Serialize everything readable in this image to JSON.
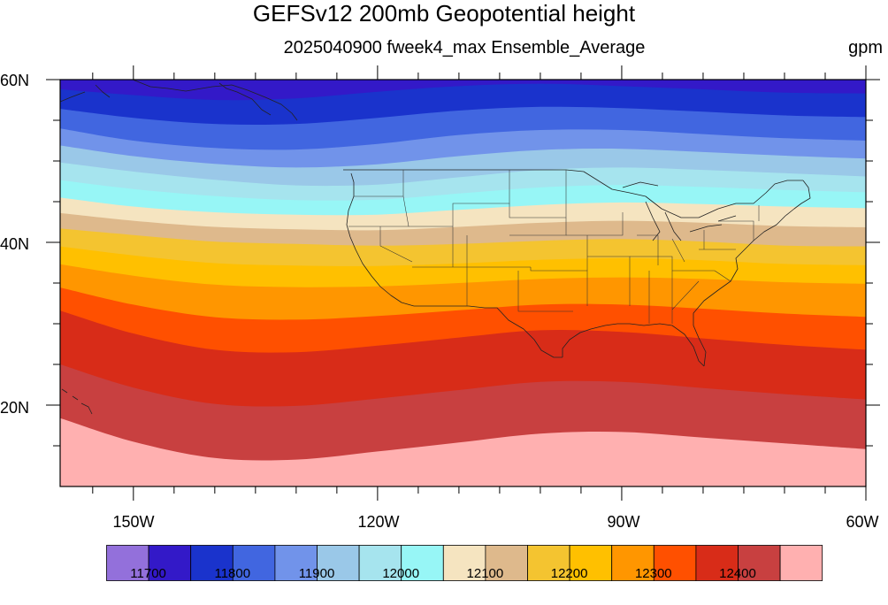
{
  "title": "GEFSv12 200mb Geopotential height",
  "subtitle": "2025040900 fweek4_max Ensemble_Average",
  "units": "gpm",
  "lat_labels": [
    "60N",
    "40N",
    "20N"
  ],
  "lon_labels": [
    "150W",
    "120W",
    "90W",
    "60W"
  ],
  "colorbar": {
    "colors": [
      "#9370db",
      "#3319c8",
      "#1a33cc",
      "#4166e0",
      "#7193ea",
      "#9ac8e8",
      "#a6e4ee",
      "#97f6f6",
      "#f5e4c0",
      "#deb98c",
      "#f4c430",
      "#ffc000",
      "#ff9600",
      "#ff5000",
      "#d82c18",
      "#c84040",
      "#ffb0b0"
    ],
    "labels": [
      "11700",
      "11800",
      "11900",
      "12000",
      "12100",
      "12200",
      "12300",
      "12400"
    ]
  },
  "chart_data": {
    "type": "heatmap",
    "title": "GEFSv12 200mb Geopotential height",
    "subtitle": "2025040900 fweek4_max Ensemble_Average",
    "units": "gpm",
    "domain": {
      "lon": [
        -159,
        -60
      ],
      "lat": [
        10,
        60
      ]
    },
    "x_ticks": [
      "150W",
      "120W",
      "90W",
      "60W"
    ],
    "y_ticks": [
      "60N",
      "40N",
      "20N"
    ],
    "contour_levels": [
      11650,
      11700,
      11750,
      11800,
      11850,
      11900,
      11950,
      12000,
      12050,
      12100,
      12150,
      12200,
      12250,
      12300,
      12350,
      12400,
      12450
    ],
    "contours": [
      {
        "value": 11700,
        "lon": [
          -159,
          -150,
          -140,
          -130,
          -120,
          -110,
          -100,
          -90,
          -80,
          -70,
          -60
        ],
        "lat": [
          58.8,
          58.1,
          57.5,
          57.7,
          58.5,
          59.2,
          59.5,
          59.2,
          58.8,
          58.4,
          58.3
        ]
      },
      {
        "value": 11800,
        "lon": [
          -159,
          -150,
          -140,
          -130,
          -120,
          -110,
          -100,
          -90,
          -80,
          -70,
          -60
        ],
        "lat": [
          54.0,
          52.5,
          51.6,
          51.4,
          52.1,
          53.2,
          53.8,
          53.8,
          53.3,
          52.8,
          52.5
        ]
      },
      {
        "value": 11900,
        "lon": [
          -159,
          -150,
          -140,
          -130,
          -120,
          -110,
          -100,
          -90,
          -80,
          -70,
          -60
        ],
        "lat": [
          49.8,
          48.7,
          47.7,
          47.0,
          47.1,
          48.0,
          48.9,
          49.2,
          48.9,
          48.5,
          48.1
        ]
      },
      {
        "value": 12000,
        "lon": [
          -159,
          -150,
          -140,
          -130,
          -120,
          -110,
          -100,
          -90,
          -80,
          -70,
          -60
        ],
        "lat": [
          45.5,
          44.4,
          43.7,
          43.4,
          43.4,
          44.0,
          44.6,
          44.9,
          44.7,
          44.4,
          44.2
        ]
      },
      {
        "value": 12100,
        "lon": [
          -159,
          -150,
          -140,
          -130,
          -120,
          -110,
          -100,
          -90,
          -80,
          -70,
          -60
        ],
        "lat": [
          41.7,
          40.9,
          40.1,
          39.8,
          39.6,
          39.8,
          40.2,
          40.4,
          40.1,
          39.6,
          39.5
        ]
      },
      {
        "value": 12200,
        "lon": [
          -159,
          -150,
          -140,
          -130,
          -120,
          -110,
          -100,
          -90,
          -80,
          -70,
          -60
        ],
        "lat": [
          37.3,
          35.9,
          34.8,
          34.5,
          34.6,
          35.0,
          35.5,
          35.7,
          35.5,
          35.1,
          34.9
        ]
      },
      {
        "value": 12300,
        "lon": [
          -159,
          -150,
          -140,
          -130,
          -120,
          -110,
          -100,
          -90,
          -80,
          -70,
          -60
        ],
        "lat": [
          31.6,
          28.8,
          26.8,
          26.5,
          27.3,
          28.3,
          29.2,
          29.0,
          28.2,
          27.4,
          26.8
        ]
      },
      {
        "value": 12400,
        "lon": [
          -159,
          -150,
          -140,
          -130,
          -120,
          -110,
          -100,
          -90,
          -80,
          -70,
          -60
        ],
        "lat": [
          18.4,
          15.5,
          13.5,
          13.3,
          14.3,
          15.4,
          16.5,
          16.7,
          16.0,
          15.3,
          14.6
        ]
      }
    ],
    "extrema": {
      "min_region": "northern edge near 60N (< 11650 gpm)",
      "max_region": "southern edge 10N, 100W-60W (> 12450 gpm)"
    }
  }
}
